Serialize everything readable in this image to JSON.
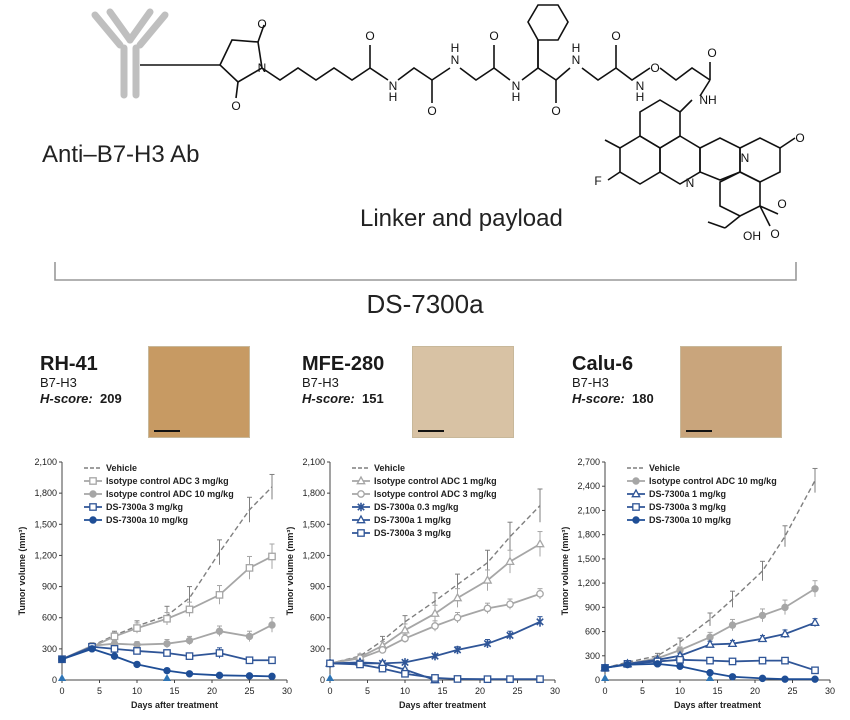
{
  "header": {
    "antibody_label": "Anti–B7-H3 Ab",
    "linker_label": "Linker and payload",
    "drug_name": "DS-7300a"
  },
  "structure_atoms": {
    "o": "O",
    "n": "N",
    "nh": "NH",
    "hn": "HN",
    "h": "H",
    "f": "F",
    "oh": "OH"
  },
  "panels": [
    {
      "name": "RH-41",
      "marker": "B7-H3",
      "score_label": "H-score:",
      "score_value": "209",
      "ihc_color": "#c79a63"
    },
    {
      "name": "MFE-280",
      "marker": "B7-H3",
      "score_label": "H-score:",
      "score_value": "151",
      "ihc_color": "#d8c2a4"
    },
    {
      "name": "Calu-6",
      "marker": "B7-H3",
      "score_label": "H-score:",
      "score_value": "180",
      "ihc_color": "#c9a57c"
    }
  ],
  "chart_data": [
    {
      "type": "line",
      "xlabel": "Days after treatment",
      "ylabel": "Tumor volume (mm³)",
      "xlim": [
        0,
        30
      ],
      "ylim": [
        0,
        2100
      ],
      "xticks": [
        "0",
        "5",
        "10",
        "15",
        "20",
        "25",
        "30"
      ],
      "yticks": [
        "0",
        "300",
        "600",
        "900",
        "1,200",
        "1,500",
        "1,800",
        "2,100"
      ],
      "dosing_days": [
        0,
        14
      ],
      "legend_position": "top-right",
      "series": [
        {
          "name": "Vehicle",
          "color": "#7f7f7f",
          "dash": true,
          "marker": "none",
          "x": [
            0,
            4,
            7,
            10,
            14,
            17,
            21,
            25,
            28
          ],
          "y": [
            200,
            330,
            430,
            520,
            620,
            790,
            1230,
            1640,
            1860
          ],
          "err": [
            0,
            30,
            40,
            50,
            90,
            110,
            120,
            120,
            120
          ]
        },
        {
          "name": "Isotype control ADC  3 mg/kg",
          "color": "#a6a6a6",
          "dash": false,
          "marker": "open-square",
          "x": [
            0,
            4,
            7,
            10,
            14,
            17,
            21,
            25,
            28
          ],
          "y": [
            200,
            320,
            420,
            500,
            590,
            680,
            820,
            1080,
            1190
          ],
          "err": [
            0,
            20,
            40,
            50,
            60,
            70,
            90,
            110,
            120
          ]
        },
        {
          "name": "Isotype control ADC  10 mg/kg",
          "color": "#a6a6a6",
          "dash": false,
          "marker": "filled-circle",
          "x": [
            0,
            4,
            7,
            10,
            14,
            17,
            21,
            25,
            28
          ],
          "y": [
            200,
            330,
            350,
            340,
            350,
            380,
            470,
            420,
            530
          ],
          "err": [
            0,
            20,
            30,
            30,
            40,
            40,
            50,
            50,
            70
          ]
        },
        {
          "name": "DS-7300a  3 mg/kg",
          "color": "#2f5597",
          "dash": false,
          "marker": "open-square",
          "x": [
            0,
            4,
            7,
            10,
            14,
            17,
            21,
            25,
            28
          ],
          "y": [
            200,
            320,
            300,
            280,
            260,
            230,
            260,
            190,
            190
          ],
          "err": [
            0,
            20,
            20,
            20,
            30,
            20,
            50,
            30,
            30
          ]
        },
        {
          "name": "DS-7300a  10 mg/kg",
          "color": "#1f4e96",
          "dash": false,
          "marker": "filled-circle",
          "x": [
            0,
            4,
            7,
            10,
            14,
            17,
            21,
            25,
            28
          ],
          "y": [
            200,
            300,
            230,
            150,
            90,
            60,
            45,
            40,
            35
          ],
          "err": [
            0,
            20,
            20,
            15,
            10,
            10,
            8,
            8,
            8
          ]
        }
      ]
    },
    {
      "type": "line",
      "xlabel": "Days after treatment",
      "ylabel": "Tumor volume (mm³)",
      "xlim": [
        0,
        30
      ],
      "ylim": [
        0,
        2100
      ],
      "xticks": [
        "0",
        "5",
        "10",
        "15",
        "20",
        "25",
        "30"
      ],
      "yticks": [
        "0",
        "300",
        "600",
        "900",
        "1,200",
        "1,500",
        "1,800",
        "2,100"
      ],
      "dosing_days": [
        0,
        14
      ],
      "legend_position": "top-right",
      "series": [
        {
          "name": "Vehicle",
          "color": "#7f7f7f",
          "dash": true,
          "marker": "none",
          "x": [
            0,
            4,
            7,
            10,
            14,
            17,
            21,
            24,
            28
          ],
          "y": [
            160,
            230,
            380,
            560,
            760,
            920,
            1130,
            1380,
            1680
          ],
          "err": [
            0,
            20,
            40,
            60,
            80,
            100,
            120,
            140,
            160
          ]
        },
        {
          "name": "Isotype control ADC  1 mg/kg",
          "color": "#a6a6a6",
          "dash": false,
          "marker": "open-triangle",
          "x": [
            0,
            4,
            7,
            10,
            14,
            17,
            21,
            24,
            28
          ],
          "y": [
            160,
            220,
            330,
            480,
            640,
            790,
            960,
            1140,
            1310
          ],
          "err": [
            0,
            20,
            40,
            60,
            80,
            90,
            100,
            110,
            120
          ]
        },
        {
          "name": "Isotype control ADC  3 mg/kg",
          "color": "#a6a6a6",
          "dash": false,
          "marker": "open-circle",
          "x": [
            0,
            4,
            7,
            10,
            14,
            17,
            21,
            24,
            28
          ],
          "y": [
            160,
            210,
            290,
            400,
            520,
            600,
            690,
            730,
            830
          ],
          "err": [
            0,
            20,
            30,
            40,
            50,
            50,
            50,
            50,
            50
          ]
        },
        {
          "name": "DS-7300a  0.3 mg/kg",
          "color": "#2f5597",
          "dash": false,
          "marker": "star",
          "x": [
            0,
            4,
            7,
            10,
            14,
            17,
            21,
            24,
            28
          ],
          "y": [
            160,
            160,
            160,
            170,
            230,
            290,
            350,
            430,
            560
          ],
          "err": [
            0,
            15,
            15,
            15,
            20,
            30,
            40,
            40,
            50
          ]
        },
        {
          "name": "DS-7300a  1 mg/kg",
          "color": "#2f5597",
          "dash": false,
          "marker": "open-triangle",
          "x": [
            0,
            4,
            7,
            10,
            14
          ],
          "y": [
            160,
            170,
            160,
            100,
            0
          ],
          "err": [
            0,
            15,
            15,
            15,
            5
          ]
        },
        {
          "name": "DS-7300a  3 mg/kg",
          "color": "#2f5597",
          "dash": false,
          "marker": "open-square",
          "x": [
            0,
            4,
            7,
            10,
            14,
            17,
            21,
            24,
            28
          ],
          "y": [
            160,
            150,
            110,
            60,
            20,
            10,
            8,
            8,
            8
          ],
          "err": [
            0,
            10,
            10,
            10,
            5,
            5,
            3,
            3,
            3
          ]
        }
      ]
    },
    {
      "type": "line",
      "xlabel": "Days after treatment",
      "ylabel": "Tumor volume (mm³)",
      "xlim": [
        0,
        30
      ],
      "ylim": [
        0,
        2700
      ],
      "xticks": [
        "0",
        "5",
        "10",
        "15",
        "20",
        "25",
        "30"
      ],
      "yticks": [
        "0",
        "300",
        "600",
        "900",
        "1,200",
        "1,500",
        "1,800",
        "2,100",
        "2,400",
        "2,700"
      ],
      "dosing_days": [
        0,
        14
      ],
      "legend_position": "top-right",
      "series": [
        {
          "name": "Vehicle",
          "color": "#7f7f7f",
          "dash": true,
          "marker": "none",
          "x": [
            0,
            3,
            7,
            10,
            14,
            17,
            21,
            24,
            28
          ],
          "y": [
            150,
            220,
            300,
            470,
            750,
            1000,
            1350,
            1780,
            2470
          ],
          "err": [
            0,
            20,
            30,
            50,
            80,
            100,
            120,
            130,
            150
          ]
        },
        {
          "name": "Isotype control ADC  10 mg/kg",
          "color": "#a6a6a6",
          "dash": false,
          "marker": "filled-circle",
          "x": [
            0,
            3,
            7,
            10,
            14,
            17,
            21,
            24,
            28
          ],
          "y": [
            150,
            200,
            270,
            370,
            530,
            680,
            800,
            900,
            1130
          ],
          "err": [
            0,
            20,
            30,
            40,
            60,
            70,
            80,
            90,
            100
          ]
        },
        {
          "name": "DS-7300a  1 mg/kg",
          "color": "#2f5597",
          "dash": false,
          "marker": "open-triangle",
          "x": [
            0,
            3,
            7,
            10,
            14,
            17,
            21,
            24,
            28
          ],
          "y": [
            150,
            200,
            250,
            300,
            440,
            450,
            510,
            570,
            710
          ],
          "err": [
            0,
            20,
            20,
            30,
            40,
            40,
            40,
            50,
            50
          ]
        },
        {
          "name": "DS-7300a  3 mg/kg",
          "color": "#2f5597",
          "dash": false,
          "marker": "open-square",
          "x": [
            0,
            3,
            7,
            10,
            14,
            17,
            21,
            24,
            28
          ],
          "y": [
            150,
            200,
            230,
            250,
            240,
            230,
            240,
            240,
            120
          ],
          "err": [
            0,
            15,
            20,
            20,
            20,
            20,
            20,
            20,
            15
          ]
        },
        {
          "name": "DS-7300a  10 mg/kg",
          "color": "#1f4e96",
          "dash": false,
          "marker": "filled-circle",
          "x": [
            0,
            3,
            7,
            10,
            14,
            17,
            21,
            24,
            28
          ],
          "y": [
            150,
            190,
            200,
            170,
            90,
            40,
            20,
            10,
            10
          ],
          "err": [
            0,
            15,
            15,
            15,
            10,
            8,
            5,
            3,
            3
          ]
        }
      ]
    }
  ]
}
